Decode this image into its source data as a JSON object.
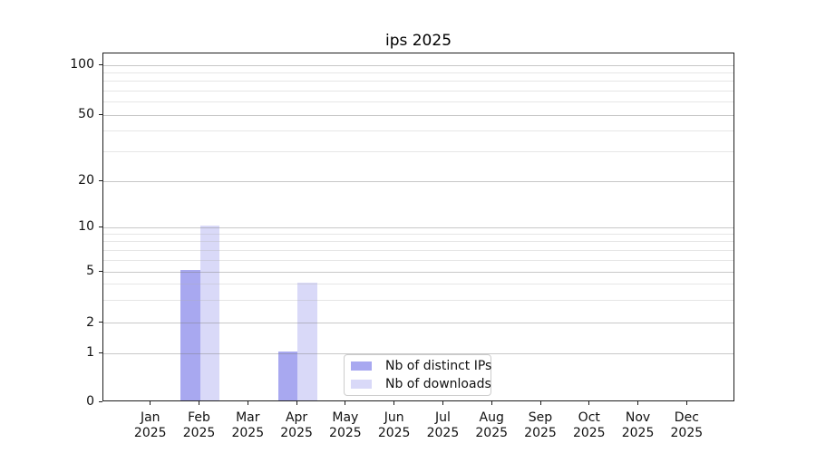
{
  "chart_data": {
    "type": "bar",
    "title": "ips 2025",
    "categories": [
      "Jan",
      "Feb",
      "Mar",
      "Apr",
      "May",
      "Jun",
      "Jul",
      "Aug",
      "Sep",
      "Oct",
      "Nov",
      "Dec"
    ],
    "year_label": "2025",
    "series": [
      {
        "name": "Nb of distinct IPs",
        "color": "#a8a8f0",
        "values": [
          0,
          5,
          0,
          1,
          0,
          0,
          0,
          0,
          0,
          0,
          0,
          0
        ]
      },
      {
        "name": "Nb of downloads",
        "color": "#d9d9f8",
        "values": [
          0,
          10,
          0,
          4,
          0,
          0,
          0,
          0,
          0,
          0,
          0,
          0
        ]
      }
    ],
    "yticks": [
      0,
      1,
      2,
      5,
      10,
      20,
      50,
      100
    ],
    "minor_yticks": [
      3,
      4,
      6,
      7,
      8,
      9,
      30,
      40,
      60,
      70,
      80,
      90
    ],
    "ylim": [
      0,
      100
    ],
    "y_scale": "log-like",
    "grid": "horizontal",
    "legend_position": "lower center"
  }
}
